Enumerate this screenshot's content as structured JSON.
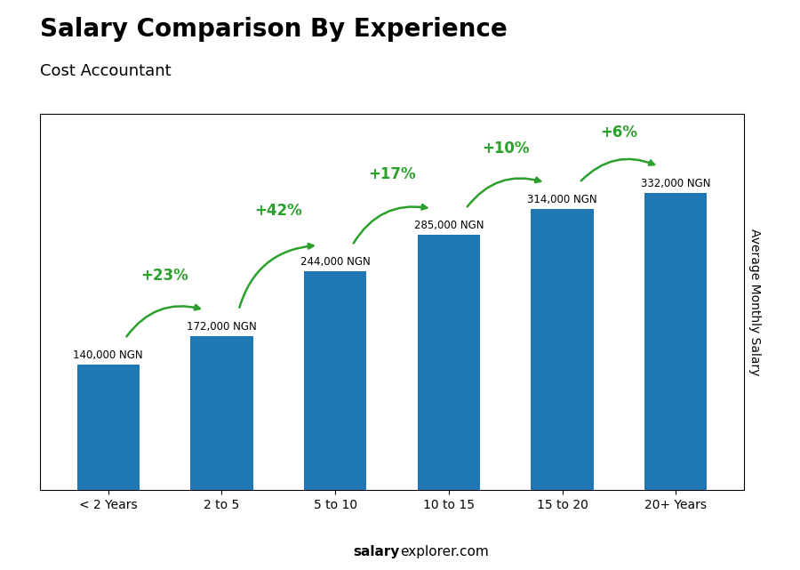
{
  "chart_data": {
    "type": "bar",
    "title": "Salary Comparison By Experience",
    "subtitle": "Cost Accountant",
    "categories": [
      "< 2 Years",
      "2 to 5",
      "5 to 10",
      "10 to 15",
      "15 to 20",
      "20+ Years"
    ],
    "values": [
      140000,
      172000,
      244000,
      285000,
      314000,
      332000
    ],
    "value_labels": [
      "140,000 NGN",
      "172,000 NGN",
      "244,000 NGN",
      "285,000 NGN",
      "314,000 NGN",
      "332,000 NGN"
    ],
    "data_labels": true,
    "change_labels": [
      "+23%",
      "+42%",
      "+17%",
      "+10%",
      "+6%"
    ],
    "y_label": "Average Monthly Salary",
    "ylim": [
      0,
      420000
    ],
    "tick_labels": "x",
    "grid": false,
    "footer": [
      "salary",
      "explorer.com"
    ]
  }
}
